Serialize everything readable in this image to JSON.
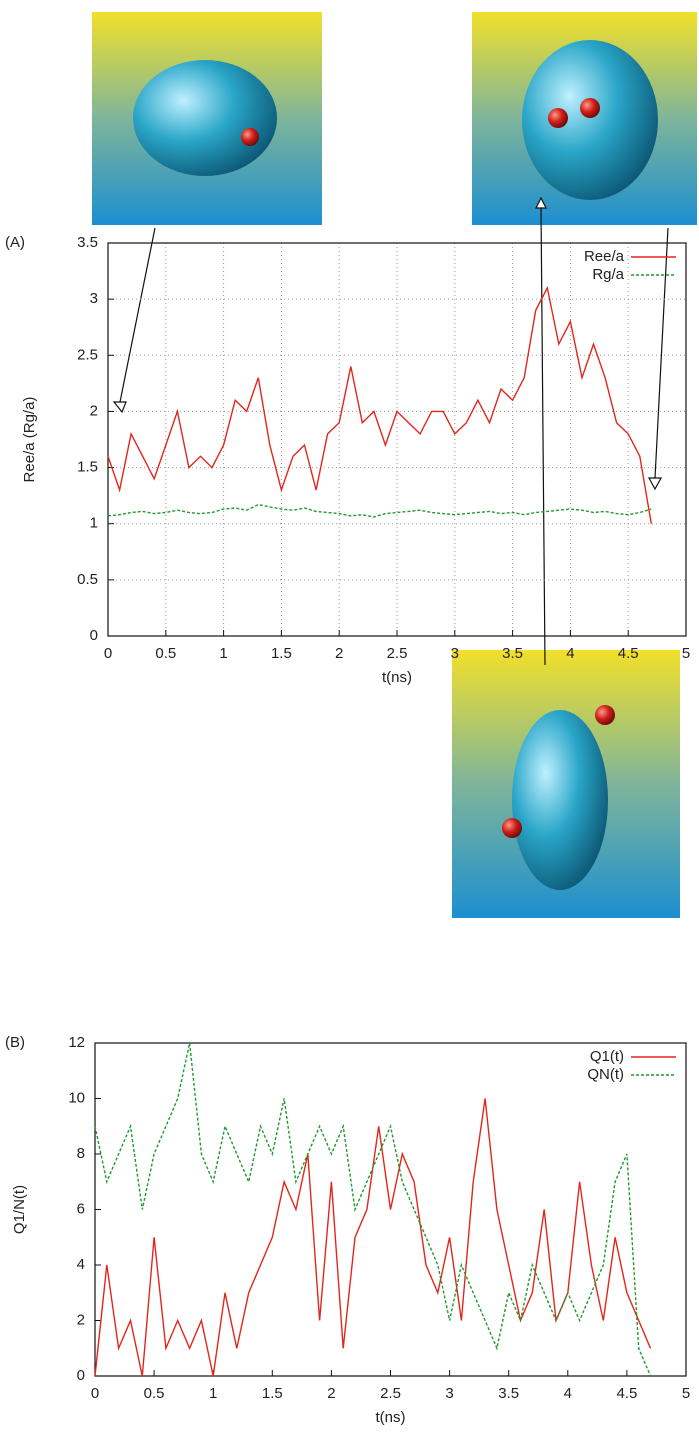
{
  "chart_data": [
    {
      "type": "line",
      "label": "(A)",
      "x_label": "t(ns)",
      "y_label": "Ree/a (Rg/a)",
      "xlim": [
        0,
        5
      ],
      "ylim": [
        0,
        3.5
      ],
      "xticks": [
        0,
        0.5,
        1,
        1.5,
        2,
        2.5,
        3,
        3.5,
        4,
        4.5,
        5
      ],
      "yticks": [
        0,
        0.5,
        1,
        1.5,
        2,
        2.5,
        3,
        3.5
      ],
      "grid": true,
      "legend": "top-right",
      "x": [
        0,
        0.1,
        0.2,
        0.3,
        0.4,
        0.5,
        0.6,
        0.7,
        0.8,
        0.9,
        1,
        1.1,
        1.2,
        1.3,
        1.4,
        1.5,
        1.6,
        1.7,
        1.8,
        1.9,
        2,
        2.1,
        2.2,
        2.3,
        2.4,
        2.5,
        2.6,
        2.7,
        2.8,
        2.9,
        3,
        3.1,
        3.2,
        3.3,
        3.4,
        3.5,
        3.6,
        3.7,
        3.8,
        3.9,
        4,
        4.1,
        4.2,
        4.3,
        4.4,
        4.5,
        4.6,
        4.7
      ],
      "series": [
        {
          "name": "Ree/a",
          "color": "#e3261c",
          "dashed": false,
          "values": [
            1.6,
            1.3,
            1.8,
            1.6,
            1.4,
            1.7,
            2.0,
            1.5,
            1.6,
            1.5,
            1.7,
            2.1,
            2.0,
            2.3,
            1.7,
            1.3,
            1.6,
            1.7,
            1.3,
            1.8,
            1.9,
            2.4,
            1.9,
            2.0,
            1.7,
            2.0,
            1.9,
            1.8,
            2.0,
            2.0,
            1.8,
            1.9,
            2.1,
            1.9,
            2.2,
            2.1,
            2.3,
            2.9,
            3.1,
            2.6,
            2.8,
            2.3,
            2.6,
            2.3,
            1.9,
            1.8,
            1.6,
            1.0
          ]
        },
        {
          "name": "Rg/a",
          "color": "#1f9a2e",
          "dashed": true,
          "values": [
            1.07,
            1.08,
            1.1,
            1.11,
            1.09,
            1.1,
            1.12,
            1.1,
            1.09,
            1.1,
            1.13,
            1.14,
            1.12,
            1.17,
            1.15,
            1.13,
            1.12,
            1.14,
            1.11,
            1.1,
            1.09,
            1.07,
            1.08,
            1.06,
            1.09,
            1.1,
            1.11,
            1.12,
            1.1,
            1.09,
            1.08,
            1.09,
            1.1,
            1.11,
            1.09,
            1.1,
            1.08,
            1.1,
            1.11,
            1.12,
            1.13,
            1.12,
            1.1,
            1.11,
            1.09,
            1.08,
            1.1,
            1.13
          ]
        }
      ]
    },
    {
      "type": "line",
      "label": "(B)",
      "x_label": "t(ns)",
      "y_label": "Q1/N(t)",
      "xlim": [
        0,
        5
      ],
      "ylim": [
        0,
        12
      ],
      "xticks": [
        0,
        0.5,
        1,
        1.5,
        2,
        2.5,
        3,
        3.5,
        4,
        4.5,
        5
      ],
      "yticks": [
        0,
        2,
        4,
        6,
        8,
        10,
        12
      ],
      "grid": false,
      "legend": "top-right",
      "x": [
        0,
        0.1,
        0.2,
        0.3,
        0.4,
        0.5,
        0.6,
        0.7,
        0.8,
        0.9,
        1,
        1.1,
        1.2,
        1.3,
        1.4,
        1.5,
        1.6,
        1.7,
        1.8,
        1.9,
        2,
        2.1,
        2.2,
        2.3,
        2.4,
        2.5,
        2.6,
        2.7,
        2.8,
        2.9,
        3,
        3.1,
        3.2,
        3.3,
        3.4,
        3.5,
        3.6,
        3.7,
        3.8,
        3.9,
        4,
        4.1,
        4.2,
        4.3,
        4.4,
        4.5,
        4.6,
        4.7
      ],
      "series": [
        {
          "name": "Q1(t)",
          "color": "#e3261c",
          "dashed": false,
          "values": [
            0,
            4,
            1,
            2,
            0,
            5,
            1,
            2,
            1,
            2,
            0,
            3,
            1,
            3,
            4,
            5,
            7,
            6,
            8,
            2,
            7,
            1,
            5,
            6,
            9,
            6,
            8,
            7,
            4,
            3,
            5,
            2,
            7,
            10,
            6,
            4,
            2,
            3,
            6,
            2,
            3,
            7,
            4,
            2,
            5,
            3,
            2,
            1
          ]
        },
        {
          "name": "QN(t)",
          "color": "#1f9a2e",
          "dashed": true,
          "values": [
            9,
            7,
            8,
            9,
            6,
            8,
            9,
            10,
            12,
            8,
            7,
            9,
            8,
            7,
            9,
            8,
            10,
            7,
            8,
            9,
            8,
            9,
            6,
            7,
            8,
            9,
            7,
            6,
            5,
            4,
            2,
            4,
            3,
            2,
            1,
            3,
            2,
            4,
            3,
            2,
            3,
            2,
            3,
            4,
            7,
            8,
            1,
            0
          ]
        }
      ]
    }
  ]
}
